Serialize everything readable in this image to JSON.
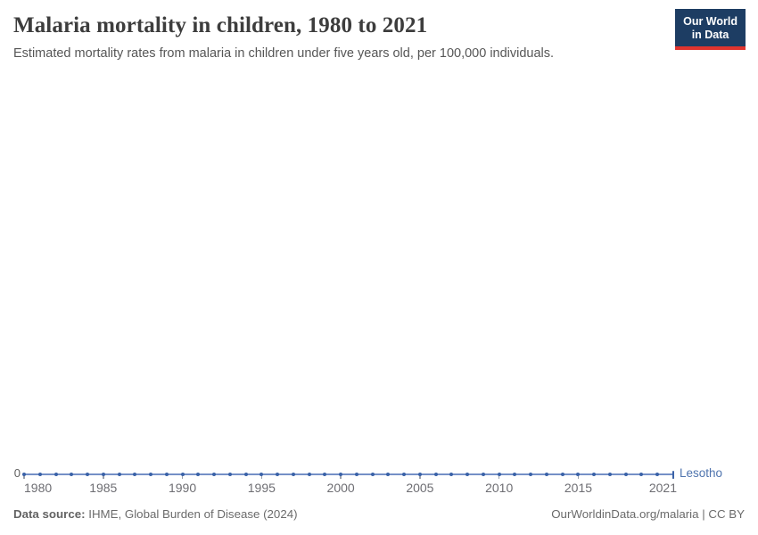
{
  "chart_data": {
    "type": "line",
    "title": "Malaria mortality in children, 1980 to 2021",
    "subtitle": "Estimated mortality rates from malaria in children under five years old, per 100,000 individuals.",
    "xlabel": "",
    "ylabel": "",
    "grid": false,
    "legend": "entity-label-at-line-end",
    "x_range": [
      1980,
      2021
    ],
    "ylim": [
      0,
      0
    ],
    "y_ticks": [
      {
        "value": 0,
        "label": "0"
      }
    ],
    "x_ticks": [
      1980,
      1985,
      1990,
      1995,
      2000,
      2005,
      2010,
      2015,
      2021
    ],
    "tick_color": "#9aa0ab",
    "axis_text_color": "#6e6e73",
    "series": [
      {
        "name": "Lesotho",
        "color": "#3a62a8",
        "line_color": "#7590c6",
        "label_color": "#4f74ae",
        "x": [
          1980,
          1981,
          1982,
          1983,
          1984,
          1985,
          1986,
          1987,
          1988,
          1989,
          1990,
          1991,
          1992,
          1993,
          1994,
          1995,
          1996,
          1997,
          1998,
          1999,
          2000,
          2001,
          2002,
          2003,
          2004,
          2005,
          2006,
          2007,
          2008,
          2009,
          2010,
          2011,
          2012,
          2013,
          2014,
          2015,
          2016,
          2017,
          2018,
          2019,
          2020,
          2021
        ],
        "values": [
          0,
          0,
          0,
          0,
          0,
          0,
          0,
          0,
          0,
          0,
          0,
          0,
          0,
          0,
          0,
          0,
          0,
          0,
          0,
          0,
          0,
          0,
          0,
          0,
          0,
          0,
          0,
          0,
          0,
          0,
          0,
          0,
          0,
          0,
          0,
          0,
          0,
          0,
          0,
          0,
          0,
          0
        ]
      }
    ]
  },
  "logo": {
    "line1": "Our World",
    "line2": "in Data",
    "bg_color": "#1d3d63",
    "accent_color": "#e0342e"
  },
  "footer": {
    "source_label": "Data source:",
    "source_text": " IHME, Global Burden of Disease (2024)",
    "url_text": "OurWorldinData.org/malaria",
    "divider": " | ",
    "license_text": "CC BY"
  }
}
